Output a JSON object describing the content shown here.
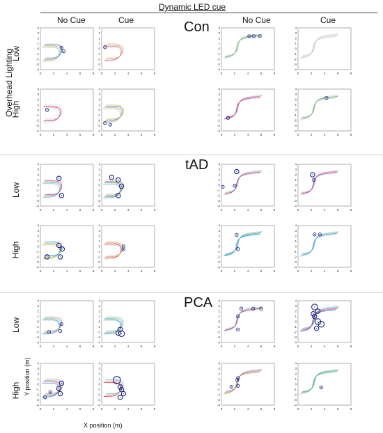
{
  "header": {
    "title": "Dynamic LED cue",
    "col_labels": [
      "No Cue",
      "Cue",
      "No Cue",
      "Cue"
    ],
    "side_label": "Overhead Lighting"
  },
  "axes": {
    "xlabel": "X position (m)",
    "ylabel": "Y position (m)",
    "xticks": [
      "0",
      "2",
      "4",
      "6",
      "8"
    ],
    "yticks": [
      "4",
      "3",
      "2",
      "1",
      "0",
      "-1",
      "-2",
      "-3",
      "-4"
    ]
  },
  "groups": [
    {
      "name": "Con",
      "row_labels": [
        "Low",
        "High"
      ]
    },
    {
      "name": "tAD",
      "row_labels": [
        "Low",
        "High"
      ]
    },
    {
      "name": "PCA",
      "row_labels": [
        "Low",
        "High"
      ]
    }
  ],
  "colors": {
    "trace_palette": [
      "#3cb44b",
      "#e6194b",
      "#f0a030",
      "#1e90ff",
      "#9b30d0",
      "#20b2aa",
      "#f5c518"
    ],
    "marker": "#1a237e",
    "grey_trace": "#b8b8b8",
    "separator": "#cfcfcf"
  },
  "chart_data": {
    "type": "scatter",
    "title": "Dynamic LED cue",
    "xlabel": "X position (m)",
    "ylabel": "Y position (m)",
    "xlim": [
      0,
      8
    ],
    "ylim": [
      -4,
      4
    ],
    "grid": false,
    "legend": "none",
    "panels": [
      {
        "group": "Con",
        "lighting": "Low",
        "cue": "No Cue",
        "shape": "U",
        "traces": [
          [
            "#3cb44b",
            0.5
          ],
          [
            "#f0a030",
            0.8
          ],
          [
            "#1e90ff",
            1.0
          ]
        ],
        "markers": [
          [
            3.2,
            0.2,
            1
          ],
          [
            3.5,
            -0.5,
            1
          ]
        ]
      },
      {
        "group": "Con",
        "lighting": "Low",
        "cue": "Cue",
        "shape": "U",
        "traces": [
          [
            "#e6194b",
            0.6
          ],
          [
            "#f0a030",
            1.0
          ]
        ],
        "markers": [
          [
            0.5,
            0.3,
            1
          ]
        ]
      },
      {
        "group": "Con",
        "lighting": "Low",
        "cue": "No Cue",
        "shape": "S",
        "traces": [
          [
            "#3cb44b",
            1.0
          ]
        ],
        "markers": [
          [
            4.2,
            2.4,
            1
          ],
          [
            4.9,
            2.4,
            1
          ],
          [
            5.8,
            2.4,
            1
          ]
        ]
      },
      {
        "group": "Con",
        "lighting": "Low",
        "cue": "Cue",
        "shape": "S",
        "traces": [],
        "markers": []
      },
      {
        "group": "Con",
        "lighting": "High",
        "cue": "No Cue",
        "shape": "U",
        "traces": [
          [
            "#e6194b",
            1.0
          ]
        ],
        "markers": [
          [
            1.0,
            0.0,
            1
          ]
        ]
      },
      {
        "group": "Con",
        "lighting": "High",
        "cue": "Cue",
        "shape": "U",
        "traces": [
          [
            "#3cb44b",
            0.2
          ],
          [
            "#f0a030",
            0.6
          ],
          [
            "#1e90ff",
            1.0
          ],
          [
            "#f5c518",
            0.8
          ]
        ],
        "markers": [
          [
            0.5,
            -2.5,
            1
          ],
          [
            1.3,
            -2.8,
            1
          ]
        ]
      },
      {
        "group": "Con",
        "lighting": "High",
        "cue": "No Cue",
        "shape": "S",
        "traces": [
          [
            "#9b30d0",
            1.0
          ],
          [
            "#e6194b",
            0.6
          ]
        ],
        "markers": [
          [
            1.0,
            -1.5,
            1
          ]
        ]
      },
      {
        "group": "Con",
        "lighting": "High",
        "cue": "Cue",
        "shape": "S",
        "traces": [
          [
            "#3cb44b",
            1.0
          ]
        ],
        "markers": [
          [
            4.3,
            2.3,
            1
          ]
        ]
      },
      {
        "group": "tAD",
        "lighting": "Low",
        "cue": "No Cue",
        "shape": "U",
        "traces": [
          [
            "#3cb44b",
            0.5
          ],
          [
            "#1e90ff",
            1.0
          ],
          [
            "#e6194b",
            0.8
          ]
        ],
        "markers": [
          [
            2.8,
            1.3,
            2
          ],
          [
            3.2,
            -2.0,
            2
          ]
        ]
      },
      {
        "group": "tAD",
        "lighting": "Low",
        "cue": "Cue",
        "shape": "U",
        "traces": [
          [
            "#1e90ff",
            0.8
          ],
          [
            "#3cb44b",
            1.0
          ],
          [
            "#e6194b",
            0.6
          ],
          [
            "#20b2aa",
            0.4
          ]
        ],
        "markers": [
          [
            1.5,
            1.5,
            2
          ],
          [
            2.5,
            1.0,
            2
          ],
          [
            3.0,
            -0.2,
            2
          ],
          [
            2.5,
            -2.0,
            2
          ]
        ]
      },
      {
        "group": "tAD",
        "lighting": "Low",
        "cue": "No Cue",
        "shape": "S",
        "traces": [
          [
            "#e6194b",
            1.0
          ],
          [
            "#1e90ff",
            0.5
          ]
        ],
        "markers": [
          [
            2.3,
            2.6,
            2
          ],
          [
            2.0,
            -0.1,
            1
          ],
          [
            0.2,
            -0.3,
            1
          ]
        ]
      },
      {
        "group": "tAD",
        "lighting": "Low",
        "cue": "Cue",
        "shape": "S",
        "traces": [
          [
            "#9b30d0",
            1.0
          ],
          [
            "#e6194b",
            0.5
          ]
        ],
        "markers": [
          [
            2.2,
            2.0,
            2
          ],
          [
            2.4,
            1.0,
            1
          ]
        ]
      },
      {
        "group": "tAD",
        "lighting": "High",
        "cue": "No Cue",
        "shape": "U",
        "traces": [
          [
            "#f5c518",
            0.8
          ],
          [
            "#3cb44b",
            0.5
          ],
          [
            "#1e90ff",
            1.0
          ]
        ],
        "markers": [
          [
            2.8,
            0.2,
            2
          ],
          [
            3.3,
            -0.5,
            2
          ],
          [
            1.0,
            -2.0,
            2
          ],
          [
            3.0,
            -2.0,
            2
          ]
        ]
      },
      {
        "group": "tAD",
        "lighting": "High",
        "cue": "Cue",
        "shape": "U",
        "traces": [
          [
            "#e6194b",
            1.0
          ],
          [
            "#f0a030",
            0.8
          ]
        ],
        "markers": [
          [
            3.3,
            0.0,
            1
          ],
          [
            3.3,
            -0.6,
            1
          ]
        ]
      },
      {
        "group": "tAD",
        "lighting": "High",
        "cue": "No Cue",
        "shape": "S",
        "traces": [
          [
            "#1e90ff",
            1.0
          ],
          [
            "#20b2aa",
            0.8
          ],
          [
            "#3cb44b",
            0.5
          ]
        ],
        "markers": [
          [
            2.3,
            2.2,
            1
          ],
          [
            2.5,
            -0.5,
            1
          ]
        ]
      },
      {
        "group": "tAD",
        "lighting": "High",
        "cue": "Cue",
        "shape": "S",
        "traces": [
          [
            "#1e90ff",
            1.0
          ],
          [
            "#20b2aa",
            0.6
          ]
        ],
        "markers": [
          [
            2.5,
            2.3,
            1
          ],
          [
            3.3,
            2.3,
            1
          ]
        ]
      },
      {
        "group": "PCA",
        "lighting": "Low",
        "cue": "No Cue",
        "shape": "U",
        "traces": [
          [
            "#1e90ff",
            1.0
          ],
          [
            "#3cb44b",
            0.5
          ],
          [
            "#e6194b",
            0.4
          ]
        ],
        "markers": [
          [
            3.2,
            -0.5,
            1
          ],
          [
            3.0,
            -1.8,
            1
          ],
          [
            1.3,
            -2.0,
            1
          ]
        ]
      },
      {
        "group": "PCA",
        "lighting": "Low",
        "cue": "Cue",
        "shape": "U",
        "traces": [
          [
            "#1e90ff",
            1.0
          ],
          [
            "#3cb44b",
            0.6
          ],
          [
            "#20b2aa",
            0.4
          ]
        ],
        "markers": [
          [
            2.8,
            -1.5,
            2
          ],
          [
            3.0,
            -2.3,
            3
          ],
          [
            2.5,
            -2.2,
            2
          ]
        ]
      },
      {
        "group": "PCA",
        "lighting": "Low",
        "cue": "No Cue",
        "shape": "S",
        "traces": [
          [
            "#e6194b",
            1.0
          ],
          [
            "#1e90ff",
            0.6
          ]
        ],
        "markers": [
          [
            3.0,
            2.5,
            1
          ],
          [
            4.8,
            2.5,
            1
          ],
          [
            6.0,
            2.5,
            1
          ],
          [
            2.5,
            1.0,
            1
          ],
          [
            2.5,
            -1.5,
            1
          ]
        ]
      },
      {
        "group": "PCA",
        "lighting": "Low",
        "cue": "Cue",
        "shape": "S",
        "traces": [
          [
            "#1e90ff",
            1.0
          ],
          [
            "#e6194b",
            0.8
          ],
          [
            "#9b30d0",
            0.6
          ],
          [
            "#20b2aa",
            0.5
          ]
        ],
        "markers": [
          [
            2.5,
            2.8,
            3
          ],
          [
            3.0,
            2.0,
            2
          ],
          [
            2.5,
            1.0,
            2
          ],
          [
            3.0,
            0.0,
            3
          ],
          [
            3.5,
            -0.5,
            3
          ],
          [
            2.8,
            -1.3,
            2
          ],
          [
            2.3,
            1.5,
            2
          ]
        ]
      },
      {
        "group": "PCA",
        "lighting": "High",
        "cue": "No Cue",
        "shape": "U",
        "traces": [
          [
            "#1e90ff",
            1.0
          ],
          [
            "#e6194b",
            0.7
          ],
          [
            "#3cb44b",
            0.5
          ],
          [
            "#9b30d0",
            0.4
          ]
        ],
        "markers": [
          [
            3.2,
            0.2,
            2
          ],
          [
            2.8,
            -0.8,
            2
          ],
          [
            1.5,
            -1.5,
            1
          ],
          [
            3.0,
            -1.8,
            2
          ],
          [
            0.7,
            -2.5,
            1
          ]
        ]
      },
      {
        "group": "PCA",
        "lighting": "High",
        "cue": "Cue",
        "shape": "U",
        "traces": [
          [
            "#e6194b",
            1.0
          ],
          [
            "#f0a030",
            0.8
          ],
          [
            "#1e90ff",
            0.6
          ]
        ],
        "markers": [
          [
            2.3,
            0.8,
            4
          ],
          [
            2.8,
            -0.5,
            2
          ],
          [
            3.0,
            -1.0,
            2
          ],
          [
            3.3,
            -1.8,
            2
          ],
          [
            2.8,
            -2.5,
            2
          ]
        ]
      },
      {
        "group": "PCA",
        "lighting": "High",
        "cue": "No Cue",
        "shape": "S",
        "traces": [
          [
            "#f0a030",
            1.0
          ],
          [
            "#1e90ff",
            0.6
          ],
          [
            "#e6194b",
            0.5
          ]
        ],
        "markers": [
          [
            2.5,
            1.2,
            1
          ],
          [
            2.4,
            0.8,
            1
          ],
          [
            1.5,
            -0.5,
            1
          ],
          [
            2.5,
            -0.3,
            1
          ]
        ]
      },
      {
        "group": "PCA",
        "lighting": "High",
        "cue": "Cue",
        "shape": "S",
        "traces": [
          [
            "#3cb44b",
            0.8
          ],
          [
            "#20b2aa",
            1.0
          ]
        ],
        "markers": [
          [
            3.5,
            -0.6,
            1
          ]
        ]
      }
    ]
  }
}
